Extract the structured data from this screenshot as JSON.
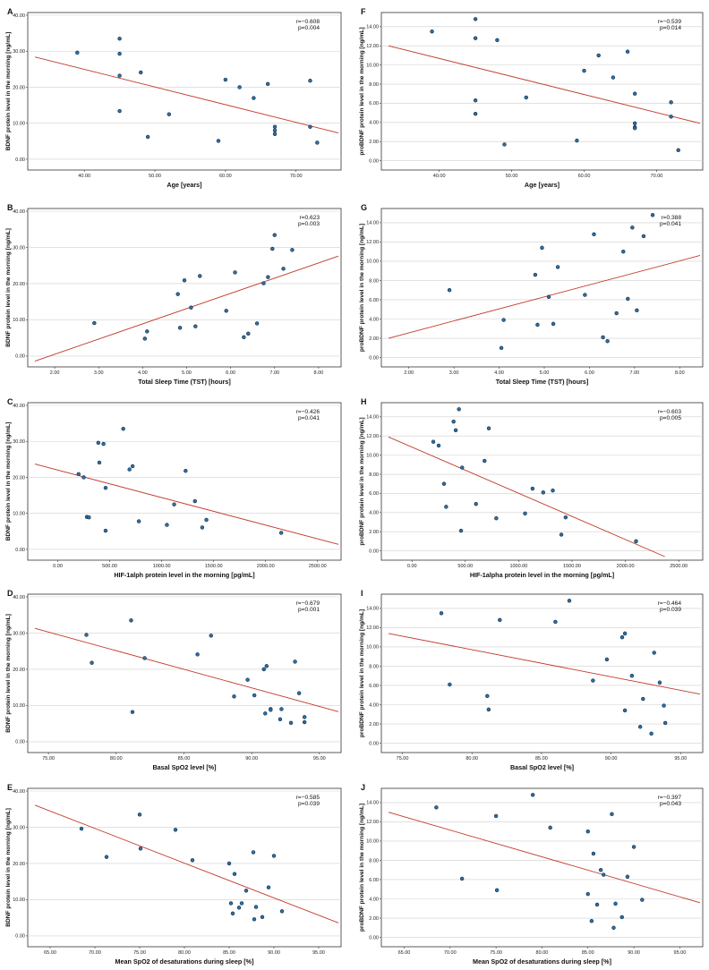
{
  "chart_data": [
    {
      "panel": "A",
      "type": "scatter",
      "xlabel": "Age [years]",
      "ylabel": "BDNF protein level in the morning [ng/mL]",
      "xticks": [
        "40.00",
        "50.00",
        "60.00",
        "70.00"
      ],
      "xtick_values": [
        40,
        50,
        60,
        70
      ],
      "yticks": [
        "0.00",
        "10.00",
        "20.00",
        "30.00",
        "40.00"
      ],
      "ytick_values": [
        0,
        10,
        20,
        30,
        40
      ],
      "xlim": [
        33,
        76
      ],
      "ylim": [
        -2,
        40
      ],
      "r_text": "r=−0.608",
      "p_text": "p=0.004",
      "fit": [
        [
          33,
          28.4
        ],
        [
          76,
          7.3
        ]
      ],
      "points": [
        [
          39,
          29.6
        ],
        [
          45,
          33.5
        ],
        [
          45,
          29.3
        ],
        [
          45,
          23.2
        ],
        [
          45,
          13.4
        ],
        [
          48,
          24.1
        ],
        [
          49,
          6.2
        ],
        [
          52,
          12.5
        ],
        [
          59,
          5.1
        ],
        [
          60,
          22.1
        ],
        [
          62,
          20
        ],
        [
          64,
          17
        ],
        [
          66,
          20.9
        ],
        [
          67,
          9
        ],
        [
          67,
          8
        ],
        [
          67,
          7
        ],
        [
          72,
          21.8
        ],
        [
          72,
          9
        ],
        [
          73,
          4.6
        ]
      ]
    },
    {
      "panel": "F",
      "type": "scatter",
      "xlabel": "Age [years]",
      "ylabel": "proBDNF protein level in the morning [ng/mL]",
      "xticks": [
        "40.00",
        "50.00",
        "60.00",
        "70.00"
      ],
      "xtick_values": [
        40,
        50,
        60,
        70
      ],
      "yticks": [
        "0.00",
        "2.00",
        "4.00",
        "6.00",
        "8.00",
        "10.00",
        "12.00",
        "14.00"
      ],
      "ytick_values": [
        0,
        2,
        4,
        6,
        8,
        10,
        12,
        14
      ],
      "xlim": [
        33,
        76
      ],
      "ylim": [
        -0.6,
        15.2
      ],
      "r_text": "r=−0.539",
      "p_text": "p=0.014",
      "fit": [
        [
          33,
          12.0
        ],
        [
          76,
          3.9
        ]
      ],
      "points": [
        [
          39,
          13.5
        ],
        [
          45,
          14.8
        ],
        [
          45,
          12.8
        ],
        [
          45,
          6.3
        ],
        [
          45,
          4.9
        ],
        [
          48,
          12.6
        ],
        [
          49,
          1.7
        ],
        [
          52,
          6.6
        ],
        [
          59,
          2.1
        ],
        [
          60,
          9.4
        ],
        [
          62,
          11
        ],
        [
          64,
          8.7
        ],
        [
          66,
          11.4
        ],
        [
          67,
          7
        ],
        [
          67,
          3.9
        ],
        [
          67,
          3.5
        ],
        [
          67,
          3.4
        ],
        [
          72,
          6.1
        ],
        [
          72,
          4.6
        ],
        [
          73,
          1.1
        ]
      ]
    },
    {
      "panel": "B",
      "type": "scatter",
      "xlabel": "Total Sleep Time (TST) [hours]",
      "ylabel": "BDNF protein level in the morning [ng/mL]",
      "xticks": [
        "2.00",
        "3.00",
        "4.00",
        "5.00",
        "6.00",
        "7.00",
        "8.00"
      ],
      "xtick_values": [
        2,
        3,
        4,
        5,
        6,
        7,
        8
      ],
      "yticks": [
        "0.00",
        "10.00",
        "20.00",
        "30.00",
        "40.00"
      ],
      "ytick_values": [
        0,
        10,
        20,
        30,
        40
      ],
      "xlim": [
        1.55,
        8.45
      ],
      "ylim": [
        -2,
        40
      ],
      "r_text": "r=0.623",
      "p_text": "p=0.003",
      "fit": [
        [
          1.55,
          -1.4
        ],
        [
          8.45,
          27.6
        ]
      ],
      "points": [
        [
          2.9,
          9.1
        ],
        [
          4.05,
          4.8
        ],
        [
          4.1,
          6.8
        ],
        [
          4.8,
          17.1
        ],
        [
          4.85,
          7.8
        ],
        [
          4.95,
          20.9
        ],
        [
          5.1,
          13.4
        ],
        [
          5.2,
          8.2
        ],
        [
          5.3,
          22.1
        ],
        [
          5.9,
          12.5
        ],
        [
          6.1,
          23.1
        ],
        [
          6.3,
          5.2
        ],
        [
          6.4,
          6.2
        ],
        [
          6.6,
          9
        ],
        [
          6.75,
          20.1
        ],
        [
          6.85,
          21.8
        ],
        [
          6.95,
          29.6
        ],
        [
          7.0,
          33.4
        ],
        [
          7.2,
          24.1
        ],
        [
          7.4,
          29.3
        ]
      ]
    },
    {
      "panel": "G",
      "type": "scatter",
      "xlabel": "Total Sleep Time (TST) [hours]",
      "ylabel": "proBDNF protein level in the morning [ng/mL]",
      "xticks": [
        "2.00",
        "3.00",
        "4.00",
        "5.00",
        "6.00",
        "7.00",
        "8.00"
      ],
      "xtick_values": [
        2,
        3,
        4,
        5,
        6,
        7,
        8
      ],
      "yticks": [
        "0.00",
        "2.00",
        "4.00",
        "6.00",
        "8.00",
        "10.00",
        "12.00",
        "14.00"
      ],
      "ytick_values": [
        0,
        2,
        4,
        6,
        8,
        10,
        12,
        14
      ],
      "xlim": [
        1.55,
        8.45
      ],
      "ylim": [
        -0.6,
        15.2
      ],
      "r_text": "r=0.388",
      "p_text": "p=0.041",
      "fit": [
        [
          1.55,
          2.0
        ],
        [
          8.45,
          10.6
        ]
      ],
      "points": [
        [
          2.9,
          7
        ],
        [
          4.05,
          1
        ],
        [
          4.1,
          3.9
        ],
        [
          4.8,
          8.6
        ],
        [
          4.85,
          3.4
        ],
        [
          4.95,
          11.4
        ],
        [
          5.1,
          6.3
        ],
        [
          5.2,
          3.5
        ],
        [
          5.3,
          9.4
        ],
        [
          5.9,
          6.5
        ],
        [
          6.1,
          12.8
        ],
        [
          6.3,
          2.1
        ],
        [
          6.4,
          1.7
        ],
        [
          6.6,
          4.6
        ],
        [
          6.75,
          11
        ],
        [
          6.85,
          6.1
        ],
        [
          6.95,
          13.5
        ],
        [
          7.05,
          4.9
        ],
        [
          7.2,
          12.6
        ],
        [
          7.4,
          14.8
        ]
      ]
    },
    {
      "panel": "C",
      "type": "scatter",
      "xlabel": "HIF-1alph protein level in the morning [pg/mL]",
      "ylabel": "BDNF protein level in the morning [ng/mL]",
      "xticks": [
        "0.00",
        "500.00",
        "1000.00",
        "1500.00",
        "2000.00",
        "2500.00"
      ],
      "xtick_values": [
        0,
        500,
        1000,
        1500,
        2000,
        2500
      ],
      "yticks": [
        "0.00",
        "10.00",
        "20.00",
        "30.00",
        "40.00"
      ],
      "ytick_values": [
        0,
        10,
        20,
        30,
        40
      ],
      "xlim": [
        -220,
        2700
      ],
      "ylim": [
        -2,
        40
      ],
      "r_text": "r=−0.426",
      "p_text": "p=0.041",
      "fit": [
        [
          -220,
          23.7
        ],
        [
          2700,
          1.4
        ]
      ],
      "points": [
        [
          200,
          20.9
        ],
        [
          250,
          20
        ],
        [
          280,
          9
        ],
        [
          300,
          8.9
        ],
        [
          390,
          29.6
        ],
        [
          400,
          24.1
        ],
        [
          440,
          29.3
        ],
        [
          460,
          17.1
        ],
        [
          460,
          5.2
        ],
        [
          630,
          33.5
        ],
        [
          690,
          22.2
        ],
        [
          720,
          23.1
        ],
        [
          780,
          7.8
        ],
        [
          1050,
          6.8
        ],
        [
          1120,
          12.5
        ],
        [
          1230,
          21.8
        ],
        [
          1320,
          13.4
        ],
        [
          1390,
          6.1
        ],
        [
          1430,
          8.2
        ],
        [
          2150,
          4.6
        ]
      ]
    },
    {
      "panel": "H",
      "type": "scatter",
      "xlabel": "HIF-1alpha protein level in the morning [pg/mL]",
      "ylabel": "proBDNF protein level in the morning [ng/mL]",
      "xticks": [
        "0.00",
        "500.00",
        "1000.00",
        "1500.00",
        "2000.00",
        "2500.00"
      ],
      "xtick_values": [
        0,
        500,
        1000,
        1500,
        2000,
        2500
      ],
      "yticks": [
        "0.00",
        "2.00",
        "4.00",
        "6.00",
        "8.00",
        "10.00",
        "12.00",
        "14.00"
      ],
      "ytick_values": [
        0,
        2,
        4,
        6,
        8,
        10,
        12,
        14
      ],
      "xlim": [
        -220,
        2700
      ],
      "ylim": [
        -0.6,
        15.2
      ],
      "r_text": "r=−0.603",
      "p_text": "p=0.005",
      "fit": [
        [
          -220,
          11.9
        ],
        [
          2370,
          -0.6
        ]
      ],
      "points": [
        [
          200,
          11.4
        ],
        [
          250,
          11
        ],
        [
          300,
          7
        ],
        [
          320,
          4.6
        ],
        [
          390,
          13.5
        ],
        [
          410,
          12.6
        ],
        [
          440,
          14.8
        ],
        [
          470,
          8.7
        ],
        [
          460,
          2.1
        ],
        [
          600,
          4.9
        ],
        [
          680,
          9.4
        ],
        [
          720,
          12.8
        ],
        [
          790,
          3.4
        ],
        [
          1060,
          3.9
        ],
        [
          1130,
          6.5
        ],
        [
          1230,
          6.1
        ],
        [
          1320,
          6.3
        ],
        [
          1400,
          1.7
        ],
        [
          1440,
          3.5
        ],
        [
          2100,
          1
        ]
      ]
    },
    {
      "panel": "D",
      "type": "scatter",
      "xlabel": "Basal SpO2 level [%]",
      "ylabel": "BDNF protein level in the morning [ng/mL]",
      "xticks": [
        "75.00",
        "80.00",
        "85.00",
        "90.00",
        "95.00"
      ],
      "xtick_values": [
        75,
        80,
        85,
        90,
        95
      ],
      "yticks": [
        "0.00",
        "10.00",
        "20.00",
        "30.00",
        "40.00"
      ],
      "ytick_values": [
        0,
        10,
        20,
        30,
        40
      ],
      "xlim": [
        74,
        96.4
      ],
      "ylim": [
        -2,
        40
      ],
      "r_text": "r=−0.679",
      "p_text": "p=0.001",
      "fit": [
        [
          74,
          31.3
        ],
        [
          96.4,
          8.3
        ]
      ],
      "points": [
        [
          77.8,
          29.5
        ],
        [
          78.2,
          21.8
        ],
        [
          81.1,
          33.5
        ],
        [
          81.2,
          8.2
        ],
        [
          82.1,
          23.1
        ],
        [
          86,
          24.1
        ],
        [
          87,
          29.3
        ],
        [
          88.7,
          12.5
        ],
        [
          89.7,
          17.1
        ],
        [
          90.2,
          12.8
        ],
        [
          90.9,
          20
        ],
        [
          91.1,
          20.9
        ],
        [
          91.0,
          7.8
        ],
        [
          91.4,
          9
        ],
        [
          91.4,
          8.8
        ],
        [
          92.1,
          6.2
        ],
        [
          92.2,
          9
        ],
        [
          92.9,
          5.2
        ],
        [
          93.2,
          22.1
        ],
        [
          93.5,
          13.4
        ],
        [
          93.9,
          6.8
        ],
        [
          93.9,
          5.4
        ]
      ]
    },
    {
      "panel": "I",
      "type": "scatter",
      "xlabel": "Basal SpO2 level [%]",
      "ylabel": "proBDNF protein level in the morning [ng/mL]",
      "xticks": [
        "75.00",
        "80.00",
        "85.00",
        "90.00",
        "95.00"
      ],
      "xtick_values": [
        75,
        80,
        85,
        90,
        95
      ],
      "yticks": [
        "0.00",
        "2.00",
        "4.00",
        "6.00",
        "8.00",
        "10.00",
        "12.00",
        "14.00"
      ],
      "ytick_values": [
        0,
        2,
        4,
        6,
        8,
        10,
        12,
        14
      ],
      "xlim": [
        74,
        96.4
      ],
      "ylim": [
        -0.6,
        15.2
      ],
      "r_text": "r=−0.464",
      "p_text": "p=0.039",
      "fit": [
        [
          74,
          11.4
        ],
        [
          96.4,
          5.1
        ]
      ],
      "points": [
        [
          77.8,
          13.5
        ],
        [
          78.4,
          6.1
        ],
        [
          81.1,
          4.9
        ],
        [
          81.2,
          3.5
        ],
        [
          82,
          12.8
        ],
        [
          86,
          12.6
        ],
        [
          87,
          14.8
        ],
        [
          88.7,
          6.5
        ],
        [
          89.7,
          8.7
        ],
        [
          90.8,
          11
        ],
        [
          91,
          11.4
        ],
        [
          91,
          3.4
        ],
        [
          91.5,
          7
        ],
        [
          92.1,
          1.7
        ],
        [
          92.3,
          4.6
        ],
        [
          92.9,
          1
        ],
        [
          93.1,
          9.4
        ],
        [
          93.5,
          6.3
        ],
        [
          93.8,
          3.9
        ],
        [
          93.9,
          2.1
        ]
      ]
    },
    {
      "panel": "E",
      "type": "scatter",
      "xlabel": "Mean SpO2 of desaturations during sleep [%]",
      "ylabel": "BDNF protein level in the morning [ng/mL]",
      "xticks": [
        "65.00",
        "70.00",
        "75.00",
        "80.00",
        "85.00",
        "90.00",
        "95.00"
      ],
      "xtick_values": [
        65,
        70,
        75,
        80,
        85,
        90,
        95
      ],
      "yticks": [
        "0.00",
        "10.00",
        "20.00",
        "30.00",
        "40.00"
      ],
      "ytick_values": [
        0,
        10,
        20,
        30,
        40
      ],
      "xlim": [
        63.3,
        97.2
      ],
      "ylim": [
        -2,
        40
      ],
      "r_text": "r=−0.585",
      "p_text": "p=0.039",
      "fit": [
        [
          63.3,
          36.1
        ],
        [
          97.2,
          3.6
        ]
      ],
      "points": [
        [
          68.5,
          29.6
        ],
        [
          71.3,
          21.8
        ],
        [
          75,
          33.5
        ],
        [
          75.1,
          24.1
        ],
        [
          79,
          29.3
        ],
        [
          80.9,
          20.9
        ],
        [
          85,
          20
        ],
        [
          85.2,
          9
        ],
        [
          85.4,
          6.2
        ],
        [
          85.6,
          17.1
        ],
        [
          86.1,
          7.8
        ],
        [
          86.4,
          9
        ],
        [
          86.9,
          12.5
        ],
        [
          87.7,
          23.1
        ],
        [
          87.8,
          4.6
        ],
        [
          88,
          8
        ],
        [
          88.7,
          5.2
        ],
        [
          89.4,
          13.4
        ],
        [
          90,
          22.1
        ],
        [
          90.9,
          6.8
        ]
      ]
    },
    {
      "panel": "J",
      "type": "scatter",
      "xlabel": "Mean SpO2 of desaturations during sleep [%]",
      "ylabel": "proBDNF protein level in the morning [ng/mL]",
      "xticks": [
        "65.00",
        "70.00",
        "75.00",
        "80.00",
        "85.00",
        "90.00",
        "95.00"
      ],
      "xtick_values": [
        65,
        70,
        75,
        80,
        85,
        90,
        95
      ],
      "yticks": [
        "0.00",
        "2.00",
        "4.00",
        "6.00",
        "8.00",
        "10.00",
        "12.00",
        "14.00"
      ],
      "ytick_values": [
        0,
        2,
        4,
        6,
        8,
        10,
        12,
        14
      ],
      "xlim": [
        63.3,
        97.2
      ],
      "ylim": [
        -0.6,
        15.2
      ],
      "r_text": "r=−0.397",
      "p_text": "p=0.043",
      "fit": [
        [
          63.3,
          13.0
        ],
        [
          97.2,
          3.6
        ]
      ],
      "points": [
        [
          68.5,
          13.5
        ],
        [
          71.3,
          6.1
        ],
        [
          75,
          12.6
        ],
        [
          75.1,
          4.9
        ],
        [
          79,
          14.8
        ],
        [
          80.9,
          11.4
        ],
        [
          85,
          11
        ],
        [
          85,
          4.5
        ],
        [
          85.4,
          1.7
        ],
        [
          85.6,
          8.7
        ],
        [
          86,
          3.4
        ],
        [
          86.4,
          7
        ],
        [
          86.7,
          6.5
        ],
        [
          87.6,
          12.8
        ],
        [
          87.8,
          1
        ],
        [
          88,
          3.5
        ],
        [
          88.7,
          2.1
        ],
        [
          89.3,
          6.3
        ],
        [
          90,
          9.4
        ],
        [
          90.9,
          3.9
        ]
      ]
    }
  ]
}
